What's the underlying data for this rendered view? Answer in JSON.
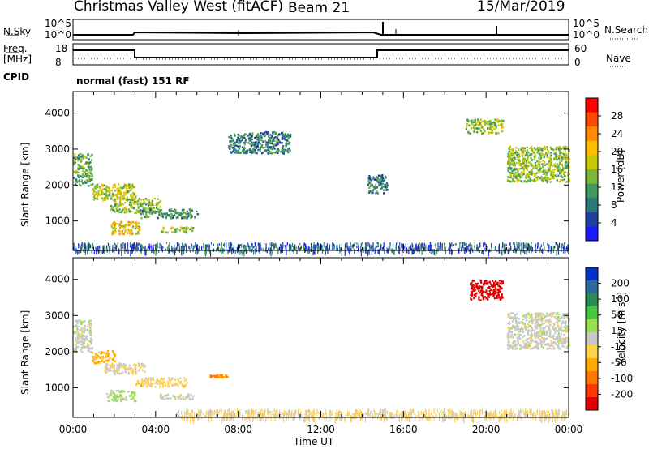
{
  "header": {
    "station": "Christmas Valley West (fitACF)",
    "beam": "Beam 21",
    "date": "15/Mar/2019"
  },
  "strips": {
    "nsky_label": "N.Sky",
    "nsky_ticks": [
      "10^5",
      "10^0"
    ],
    "nsky_ticks_right": [
      "10^5",
      "10^0"
    ],
    "nsearch_label": "N.Search",
    "freq_label_1": "Freq.",
    "freq_label_2": "[MHz]",
    "freq_ticks": [
      "18",
      "8"
    ],
    "nave_ticks": [
      "60",
      "0"
    ],
    "nave_label": "Nave",
    "cpid_label": "CPID",
    "cpid_text": "normal (fast) 151 RF"
  },
  "axes": {
    "ylabel": "Slant Range [km]",
    "xlabel": "Time UT",
    "x_ticks": [
      "00:00",
      "04:00",
      "08:00",
      "12:00",
      "16:00",
      "20:00",
      "00:00"
    ],
    "y_ticks": [
      "4000",
      "3000",
      "2000",
      "1000"
    ]
  },
  "power_scale": {
    "label": "Power [dB]",
    "ticks": [
      "28",
      "24",
      "20",
      "16",
      "12",
      "8",
      "4"
    ],
    "colors": [
      "#ff0000",
      "#ff4800",
      "#ff8c00",
      "#ffbe00",
      "#c8c800",
      "#7ab83a",
      "#3e9a60",
      "#2c7a78",
      "#1e3ea0",
      "#1a1aff"
    ]
  },
  "velocity_scale": {
    "label_main": "Velocity [m s",
    "label_sup": "-1",
    "label_end": "]",
    "ticks": [
      "200",
      "100",
      "50",
      "15",
      "-15",
      "-50",
      "-100",
      "-200"
    ],
    "colors": [
      "#0033cc",
      "#2c6a9c",
      "#2c8a56",
      "#44c840",
      "#98e050",
      "#c8c8c8",
      "#ffd24a",
      "#ffaa00",
      "#ff7800",
      "#ff3800",
      "#e00000"
    ]
  },
  "chart_data": [
    {
      "type": "heatmap",
      "name": "power",
      "x_unit": "hours UT",
      "xlim": [
        0,
        24
      ],
      "y_unit": "km",
      "ylim": [
        180,
        4600
      ],
      "cbar_label": "Power [dB]",
      "regions": [
        {
          "t0": 0.0,
          "t1": 0.9,
          "r0": 2000,
          "r1": 2900,
          "value": 12
        },
        {
          "t0": 0.9,
          "t1": 3.0,
          "r0": 1600,
          "r1": 2050,
          "value": 16
        },
        {
          "t0": 1.8,
          "t1": 4.2,
          "r0": 1250,
          "r1": 1650,
          "value": 14
        },
        {
          "t0": 1.8,
          "t1": 3.2,
          "r0": 650,
          "r1": 1000,
          "value": 19
        },
        {
          "t0": 3.2,
          "t1": 6.0,
          "r0": 1100,
          "r1": 1350,
          "value": 10
        },
        {
          "t0": 4.2,
          "t1": 5.8,
          "r0": 700,
          "r1": 850,
          "value": 14
        },
        {
          "t0": 7.5,
          "t1": 10.5,
          "r0": 2900,
          "r1": 3500,
          "value": 8
        },
        {
          "t0": 14.2,
          "t1": 15.2,
          "r0": 1800,
          "r1": 2300,
          "value": 8
        },
        {
          "t0": 19.0,
          "t1": 20.8,
          "r0": 3450,
          "r1": 3850,
          "value": 14
        },
        {
          "t0": 21.0,
          "t1": 24.0,
          "r0": 2100,
          "r1": 3100,
          "value": 14
        },
        {
          "t0": 0.0,
          "t1": 24.0,
          "r0": 180,
          "r1": 420,
          "value": 6
        }
      ]
    },
    {
      "type": "heatmap",
      "name": "velocity",
      "x_unit": "hours UT",
      "xlim": [
        0,
        24
      ],
      "y_unit": "km",
      "ylim": [
        180,
        4600
      ],
      "cbar_label": "Velocity [m s-1]",
      "regions": [
        {
          "t0": 0.0,
          "t1": 0.9,
          "r0": 2000,
          "r1": 2900,
          "value": 0
        },
        {
          "t0": 0.9,
          "t1": 2.0,
          "r0": 1700,
          "r1": 2050,
          "value": -80
        },
        {
          "t0": 1.5,
          "t1": 3.5,
          "r0": 1400,
          "r1": 1700,
          "value": -20
        },
        {
          "t0": 3.0,
          "t1": 5.5,
          "r0": 1050,
          "r1": 1300,
          "value": -40
        },
        {
          "t0": 1.6,
          "t1": 3.0,
          "r0": 650,
          "r1": 950,
          "value": 30
        },
        {
          "t0": 4.2,
          "t1": 5.8,
          "r0": 700,
          "r1": 850,
          "value": 0
        },
        {
          "t0": 6.5,
          "t1": 7.5,
          "r0": 1300,
          "r1": 1380,
          "value": -110
        },
        {
          "t0": 19.2,
          "t1": 20.8,
          "r0": 3450,
          "r1": 4000,
          "value": -250
        },
        {
          "t0": 21.0,
          "t1": 24.0,
          "r0": 2100,
          "r1": 3100,
          "value": 0
        },
        {
          "t0": 5.0,
          "t1": 24.0,
          "r0": 180,
          "r1": 420,
          "value": -30
        }
      ]
    }
  ]
}
